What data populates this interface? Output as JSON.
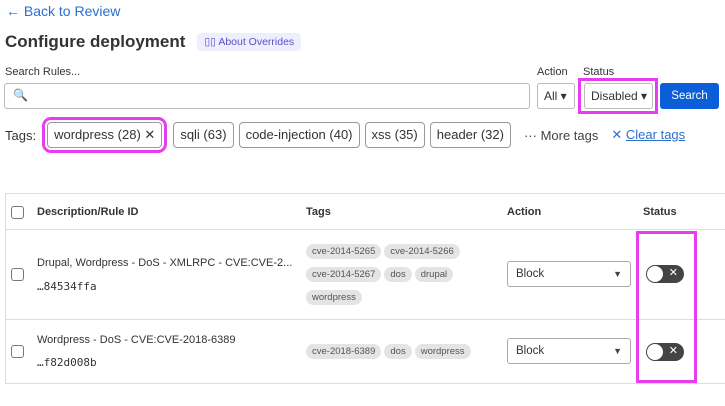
{
  "nav": {
    "back": "← Back to Review"
  },
  "header": {
    "title": "Configure deployment",
    "about": "About Overrides",
    "about_icon": "book-icon"
  },
  "filters": {
    "search_label": "Search Rules...",
    "search_value": "",
    "search_icon": "🔍",
    "action_label": "Action",
    "action_value": "All",
    "status_label": "Status",
    "status_value": "Disabled",
    "search_button": "Search"
  },
  "tags": {
    "label": "Tags:",
    "items": [
      {
        "text": "wordpress (28)",
        "selected": true,
        "remove": "✕"
      },
      {
        "text": "sqli (63)"
      },
      {
        "text": "code-injection (40)"
      },
      {
        "text": "xss (35)"
      },
      {
        "text": "header (32)"
      }
    ],
    "more": "··· More tags",
    "clear_icon": "✕",
    "clear": "Clear tags"
  },
  "table": {
    "headers": [
      "Description/Rule ID",
      "Tags",
      "Action",
      "Status"
    ],
    "rows": [
      {
        "description": "Drupal, Wordpress - DoS - XMLRPC - CVE:CVE-2...",
        "rule_id": "…84534ffa",
        "tags": [
          "cve-2014-5265",
          "cve-2014-5266",
          "cve-2014-5267",
          "dos",
          "drupal",
          "wordpress"
        ],
        "action": "Block",
        "enabled": false
      },
      {
        "description": "Wordpress - DoS - CVE:CVE-2018-6389",
        "rule_id": "…f82d008b",
        "tags": [
          "cve-2018-6389",
          "dos",
          "wordpress"
        ],
        "action": "Block",
        "enabled": false
      }
    ]
  },
  "colors": {
    "accent": "#0b5ed7",
    "link": "#2c6ecb",
    "highlight": "#e83cf0",
    "toggle_off": "#444444"
  }
}
